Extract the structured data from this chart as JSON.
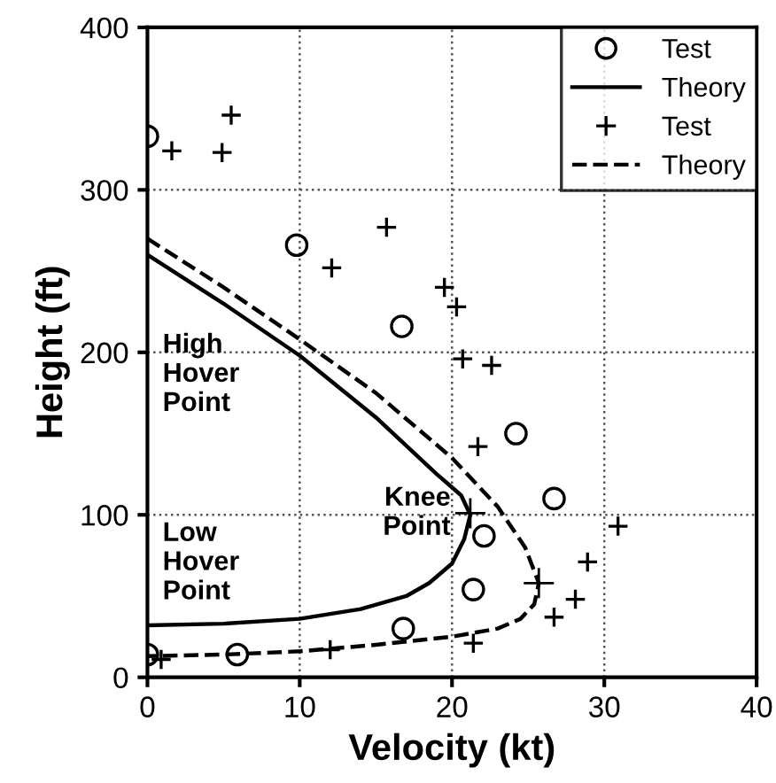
{
  "chart_data": {
    "type": "scatter",
    "xlabel": "Velocity (kt)",
    "ylabel": "Height (ft)",
    "xlim": [
      0,
      40
    ],
    "xticks": [
      0,
      10,
      20,
      30,
      40
    ],
    "ylim": [
      0,
      400
    ],
    "yticks": [
      0,
      100,
      200,
      300,
      400
    ],
    "grid": true,
    "legend": "top right",
    "series": [
      {
        "name": "Test",
        "marker": "circle",
        "color": "#000000",
        "x": [
          0,
          9.8,
          16.7,
          24.2,
          26.7,
          22.1,
          21.4,
          16.8,
          5.9,
          0
        ],
        "values": [
          333,
          266,
          216,
          150,
          110,
          87,
          54,
          30,
          14,
          14
        ]
      },
      {
        "name": "Theory",
        "type": "line",
        "line_style": "solid",
        "color": "#000000",
        "x": [
          0,
          5,
          10,
          15,
          19,
          20.6,
          21.2,
          20.8,
          20,
          18.5,
          17,
          14,
          10,
          5,
          0
        ],
        "values": [
          260,
          230,
          198,
          160,
          125,
          112,
          100,
          85,
          70,
          58,
          50,
          42,
          36,
          33,
          32
        ]
      },
      {
        "name": "Test",
        "marker": "cross",
        "color": "#000000",
        "x": [
          1.6,
          5.5,
          4.9,
          12.1,
          15.7,
          19.5,
          20.3,
          20.7,
          22.6,
          21.7,
          30.9,
          28.9,
          28.1,
          26.7,
          21.4,
          12.0,
          0.9
        ],
        "values": [
          324,
          346,
          323,
          252,
          277,
          240,
          228,
          196,
          192,
          142,
          93,
          71,
          48,
          37,
          21,
          17,
          11
        ]
      },
      {
        "name": "Theory",
        "type": "line",
        "line_style": "dashed",
        "color": "#000000",
        "x": [
          0,
          5,
          10,
          15,
          20,
          23,
          24.8,
          25.7,
          25.4,
          24.5,
          23,
          20,
          15,
          10,
          5,
          0
        ],
        "values": [
          270,
          240,
          208,
          175,
          135,
          105,
          80,
          58,
          45,
          36,
          30,
          25,
          20,
          16,
          14,
          13
        ]
      },
      {
        "marker": "cross",
        "color": "#000000",
        "x": [
          21.2,
          25.7
        ],
        "values": [
          101,
          58
        ]
      }
    ],
    "annotations": [
      "High\nHover\nPoint",
      "Low\nHover\nPoint",
      {
        "text": "Knee\nPoint",
        "x": 21.2,
        "y": 101
      }
    ]
  }
}
